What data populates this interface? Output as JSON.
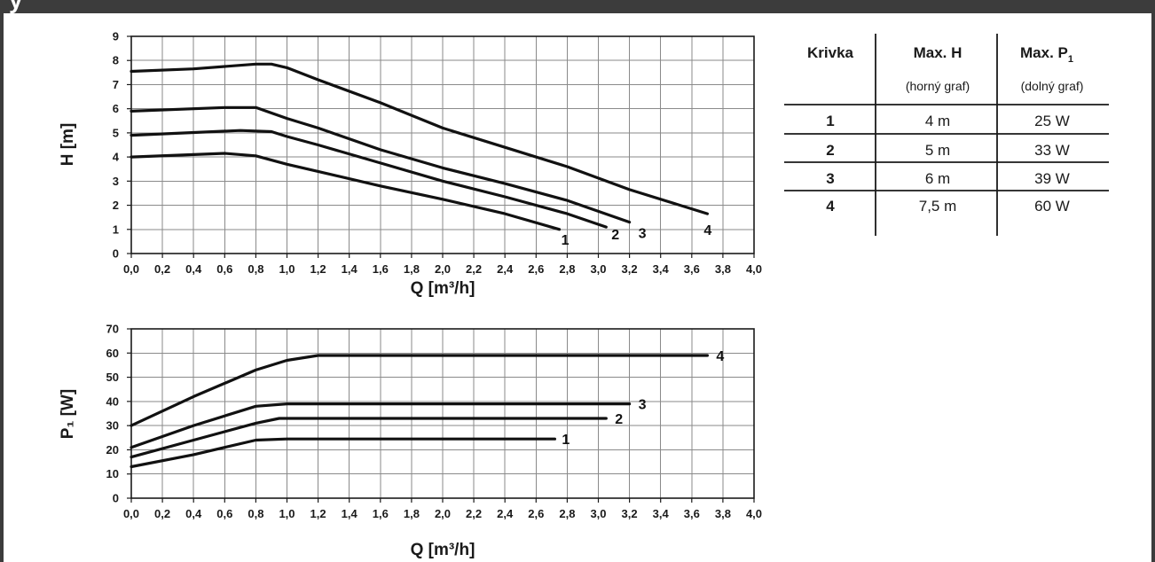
{
  "header": {
    "title": "y"
  },
  "chart_data": [
    {
      "type": "line",
      "xlabel": "Q [m³/h]",
      "ylabel": "H [m]",
      "xlim": [
        0,
        4.0
      ],
      "ylim": [
        0,
        9
      ],
      "grid": true,
      "x_ticks": [
        "0,0",
        "0,2",
        "0,4",
        "0,6",
        "0,8",
        "1,0",
        "1,2",
        "1,4",
        "1,6",
        "1,8",
        "2,0",
        "2,2",
        "2,4",
        "2,6",
        "2,8",
        "3,0",
        "3,2",
        "3,4",
        "3,6",
        "3,8",
        "4,0"
      ],
      "y_ticks": [
        "0",
        "1",
        "2",
        "3",
        "4",
        "5",
        "6",
        "7",
        "8",
        "9"
      ],
      "series": [
        {
          "name": "1",
          "x": [
            0,
            0.6,
            0.8,
            1.0,
            1.2,
            1.6,
            2.0,
            2.4,
            2.75
          ],
          "y": [
            4.0,
            4.15,
            4.05,
            3.7,
            3.4,
            2.8,
            2.25,
            1.65,
            1.0
          ]
        },
        {
          "name": "2",
          "x": [
            0,
            0.7,
            0.9,
            1.0,
            1.2,
            1.6,
            2.0,
            2.4,
            2.8,
            3.05
          ],
          "y": [
            4.9,
            5.1,
            5.05,
            4.85,
            4.5,
            3.75,
            3.0,
            2.35,
            1.65,
            1.1
          ]
        },
        {
          "name": "3",
          "x": [
            0,
            0.6,
            0.8,
            1.0,
            1.2,
            1.6,
            2.0,
            2.4,
            2.8,
            3.2
          ],
          "y": [
            5.9,
            6.05,
            6.05,
            5.6,
            5.2,
            4.3,
            3.55,
            2.9,
            2.2,
            1.3
          ]
        },
        {
          "name": "4",
          "x": [
            0,
            0.4,
            0.8,
            0.9,
            1.0,
            1.2,
            1.6,
            2.0,
            2.4,
            2.8,
            3.2,
            3.7
          ],
          "y": [
            7.55,
            7.65,
            7.85,
            7.85,
            7.7,
            7.2,
            6.25,
            5.2,
            4.4,
            3.6,
            2.65,
            1.65
          ]
        }
      ]
    },
    {
      "type": "line",
      "xlabel": "Q [m³/h]",
      "ylabel": "P₁ [W]",
      "xlim": [
        0,
        4.0
      ],
      "ylim": [
        0,
        70
      ],
      "grid": true,
      "x_ticks": [
        "0,0",
        "0,2",
        "0,4",
        "0,6",
        "0,8",
        "1,0",
        "1,2",
        "1,4",
        "1,6",
        "1,8",
        "2,0",
        "2,2",
        "2,4",
        "2,6",
        "2,8",
        "3,0",
        "3,2",
        "3,4",
        "3,6",
        "3,8",
        "4,0"
      ],
      "y_ticks": [
        "0",
        "10",
        "20",
        "30",
        "40",
        "50",
        "60",
        "70"
      ],
      "series": [
        {
          "name": "1",
          "x": [
            0,
            0.4,
            0.8,
            1.0,
            2.72
          ],
          "y": [
            13,
            18,
            24,
            24.5,
            24.5
          ]
        },
        {
          "name": "2",
          "x": [
            0,
            0.4,
            0.8,
            0.95,
            3.05
          ],
          "y": [
            17,
            24,
            31,
            33,
            33
          ]
        },
        {
          "name": "3",
          "x": [
            0,
            0.4,
            0.8,
            1.0,
            3.2
          ],
          "y": [
            21,
            30,
            38,
            39,
            39
          ]
        },
        {
          "name": "4",
          "x": [
            0,
            0.4,
            0.8,
            1.0,
            1.2,
            3.7
          ],
          "y": [
            30,
            42,
            53,
            57,
            59,
            59
          ]
        }
      ]
    }
  ],
  "table": {
    "headers": [
      {
        "main": "Krivka",
        "sub": ""
      },
      {
        "main": "Max. H",
        "sub": "(horný graf)"
      },
      {
        "main": "Max. P",
        "sub": "(dolný graf)",
        "subscript": "1"
      }
    ],
    "rows": [
      {
        "curve": "1",
        "max_h": "4 m",
        "max_p": "25 W"
      },
      {
        "curve": "2",
        "max_h": "5 m",
        "max_p": "33 W"
      },
      {
        "curve": "3",
        "max_h": "6 m",
        "max_p": "39 W"
      },
      {
        "curve": "4",
        "max_h": "7,5 m",
        "max_p": "60 W"
      }
    ]
  }
}
